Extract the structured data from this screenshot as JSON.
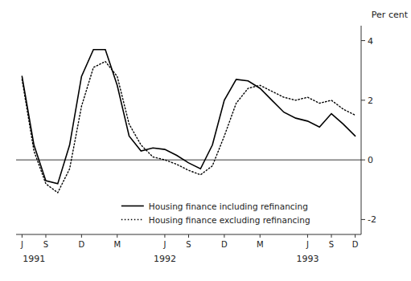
{
  "chart_data": {
    "type": "line",
    "ylabel": "Per cent",
    "x": [
      0,
      1,
      2,
      3,
      4,
      5,
      6,
      7,
      8,
      9,
      10,
      11,
      12,
      13,
      14,
      15,
      16,
      17,
      18,
      19,
      20,
      21,
      22,
      23,
      24,
      25,
      26,
      27,
      28
    ],
    "xlim": [
      -0.5,
      28.5
    ],
    "xticks": [
      {
        "value": 0,
        "label": "J"
      },
      {
        "value": 2,
        "label": "S"
      },
      {
        "value": 5,
        "label": "D"
      },
      {
        "value": 8,
        "label": "M"
      },
      {
        "value": 12,
        "label": "J"
      },
      {
        "value": 14,
        "label": "S"
      },
      {
        "value": 17,
        "label": "D"
      },
      {
        "value": 20,
        "label": "M"
      },
      {
        "value": 24,
        "label": "J"
      },
      {
        "value": 26,
        "label": "S"
      },
      {
        "value": 28,
        "label": "D"
      }
    ],
    "ylim": [
      -2.5,
      4.5
    ],
    "yticks": [
      -2,
      0,
      2,
      4
    ],
    "grid": false,
    "legend": "bottom",
    "series": [
      {
        "name": "Housing finance including refinancing",
        "color": "#000000",
        "line_style": "solid",
        "values": [
          2.8,
          0.5,
          -0.7,
          -0.8,
          0.5,
          2.8,
          3.7,
          3.7,
          2.5,
          0.8,
          0.3,
          0.4,
          0.35,
          0.15,
          -0.1,
          -0.3,
          0.5,
          2.0,
          2.7,
          2.65,
          2.4,
          2.0,
          1.6,
          1.4,
          1.3,
          1.1,
          1.55,
          1.2,
          0.8
        ]
      },
      {
        "name": "Housing finance excluding refinancing",
        "color": "#000000",
        "line_style": "dotted",
        "values": [
          2.7,
          0.3,
          -0.8,
          -1.1,
          -0.3,
          1.8,
          3.1,
          3.3,
          2.8,
          1.2,
          0.5,
          0.1,
          0.0,
          -0.15,
          -0.35,
          -0.5,
          -0.2,
          0.8,
          1.9,
          2.4,
          2.5,
          2.3,
          2.1,
          2.0,
          2.1,
          1.9,
          2.0,
          1.7,
          1.5
        ]
      }
    ],
    "annotations": [
      {
        "text": "1991",
        "x": 1
      },
      {
        "text": "1992",
        "x": 12
      },
      {
        "text": "1993",
        "x": 24
      }
    ]
  }
}
